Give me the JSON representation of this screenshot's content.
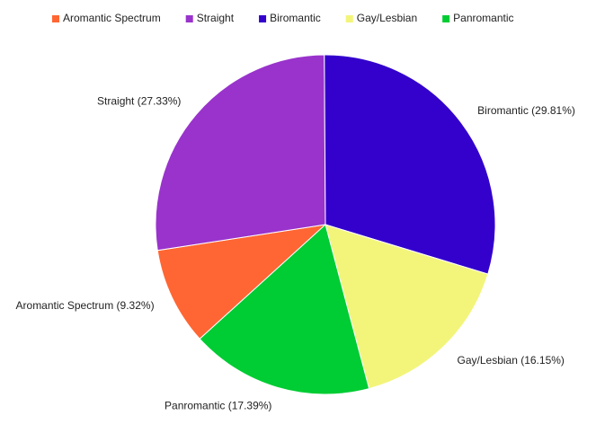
{
  "chart_data": {
    "type": "pie",
    "categories": [
      "Aromantic Spectrum",
      "Straight",
      "Biromantic",
      "Gay/Lesbian",
      "Panromantic"
    ],
    "values": [
      9.32,
      27.33,
      29.81,
      16.15,
      17.39
    ],
    "value_labels": [
      "Aromantic Spectrum (9.32%)",
      "Straight (27.33%)",
      "Biromantic (29.81%)",
      "Gay/Lesbian (16.15%)",
      "Panromantic (17.39%)"
    ],
    "colors": [
      "#ff6633",
      "#9933cc",
      "#3300cc",
      "#f3f57a",
      "#00cc33"
    ],
    "legend": "top"
  }
}
